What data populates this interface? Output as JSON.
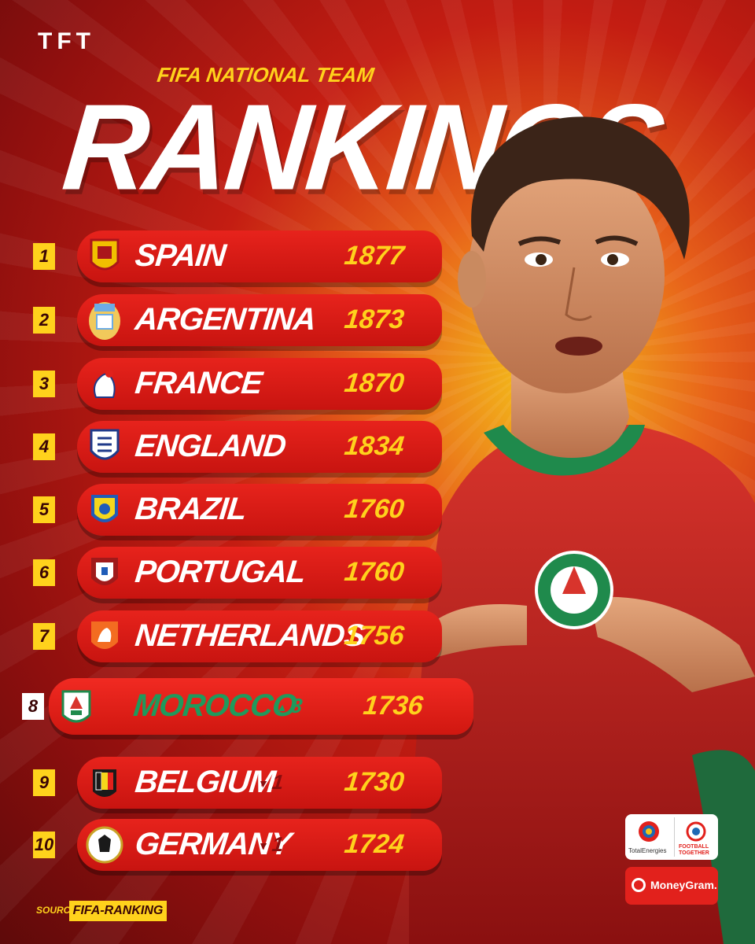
{
  "brand": "TFT",
  "header": {
    "subtitle": "FIFA NATIONAL TEAM",
    "title": "RANKINGS"
  },
  "rankings": [
    {
      "rank": "1",
      "country": "SPAIN",
      "points": "1877",
      "change": ""
    },
    {
      "rank": "2",
      "country": "ARGENTINA",
      "points": "1873",
      "change": ""
    },
    {
      "rank": "3",
      "country": "FRANCE",
      "points": "1870",
      "change": ""
    },
    {
      "rank": "4",
      "country": "ENGLAND",
      "points": "1834",
      "change": ""
    },
    {
      "rank": "5",
      "country": "BRAZIL",
      "points": "1760",
      "change": ""
    },
    {
      "rank": "6",
      "country": "PORTUGAL",
      "points": "1760",
      "change": ""
    },
    {
      "rank": "7",
      "country": "NETHERLANDS",
      "points": "1756",
      "change": ""
    },
    {
      "rank": "8",
      "country": "MOROCCO",
      "points": "1736",
      "change": "3",
      "direction": "up"
    },
    {
      "rank": "9",
      "country": "BELGIUM",
      "points": "1730",
      "change": "1",
      "direction": "down"
    },
    {
      "rank": "10",
      "country": "GERMANY",
      "points": "1724",
      "change": "1",
      "direction": "down"
    }
  ],
  "source": {
    "label": "SOURCE",
    "value": "FIFA-RANKING"
  },
  "sponsors": {
    "totalenergies": "TotalEnergies",
    "football_together": "FOOTBALL TOGETHER",
    "moneygram": "MoneyGram."
  },
  "colors": {
    "accent_yellow": "#ffd21c",
    "row_red": "#e7231c",
    "highlight_green": "#1f9a5c",
    "background_dark": "#8e0f0e"
  },
  "icons": {
    "up_arrow": "triangle-up-icon",
    "down_arrow": "triangle-down-icon"
  }
}
